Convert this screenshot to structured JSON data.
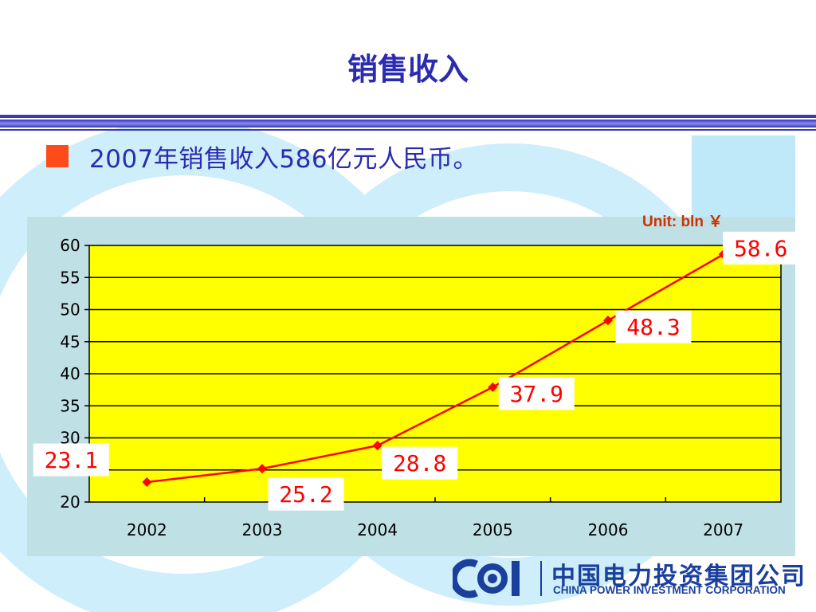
{
  "slide": {
    "title": "销售收入",
    "bullet_text": "2007年销售收入586亿元人民币。"
  },
  "colors": {
    "title": "#2b2bb0",
    "bullet_square": "#ff4a1a",
    "plot_background": "#ffff00",
    "panel_background": "#bfe1e6",
    "line": "#ff0000",
    "data_label": "#ff0000",
    "unit_label": "#cc3300",
    "logo": "#1a3f9c"
  },
  "chart_data": {
    "type": "line",
    "unit_label": "Unit: bln ￥",
    "categories": [
      "2002",
      "2003",
      "2004",
      "2005",
      "2006",
      "2007"
    ],
    "values": [
      23.1,
      25.2,
      28.8,
      37.9,
      48.3,
      58.6
    ],
    "data_labels": [
      "23.1",
      "25.2",
      "28.8",
      "37.9",
      "48.3",
      "58.6"
    ],
    "ylim": [
      20,
      60
    ],
    "yticks": [
      20,
      25,
      30,
      35,
      40,
      45,
      50,
      55,
      60
    ],
    "grid": true,
    "legend": "none"
  },
  "logo": {
    "company_cn": "中国电力投资集团公司",
    "company_en": "CHINA POWER INVESTMENT CORPORATION",
    "mark": "cpi-logo-icon"
  }
}
